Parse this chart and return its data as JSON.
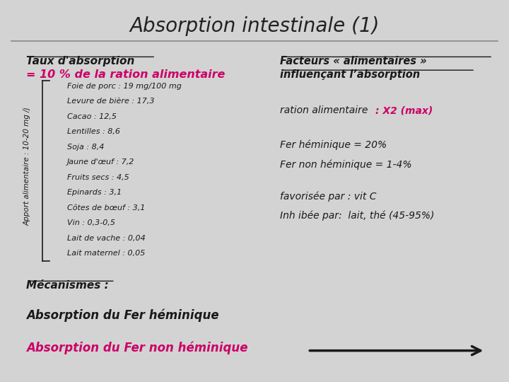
{
  "title": "Absorption intestinale (1)",
  "background_color": "#d3d3d3",
  "title_fontsize": 20,
  "title_color": "#222222",
  "section1_heading": "Taux d'absorption",
  "section1_subheading": "= 10 % de la ration alimentaire",
  "vertical_label": "Apport alimentaire : 10-20 mg /j",
  "food_items": [
    "Foie de porc : 19 mg/100 mg",
    "Levure de bière : 17,3",
    "Cacao : 12,5",
    "Lentilles : 8,6",
    "Soja : 8,4",
    "Jaune d'œuf : 7,2",
    "Fruits secs : 4,5",
    "Epinards : 3,1",
    "Côtes de bœuf : 3,1",
    "Vin : 0,3-0,5",
    "Lait de vache : 0,04",
    "Lait maternel : 0,05"
  ],
  "section2_heading_line1": "Facteurs « alimentaires »",
  "section2_heading_line2": "influençant l’absorption",
  "section2_line1_normal": "ration alimentaire ",
  "section2_line1_highlight": ": X2 (max)",
  "section2_fer1": "Fer héminique = 20%",
  "section2_fer2": "Fer non héminique = 1-4%",
  "section2_fav": "favorisée par : vit C",
  "section2_inh": "Inh ibée par:  lait, thé (45-95%)",
  "bottom_heading": "Mécanismes :",
  "bottom_line1": "Absorption du Fer héminique",
  "bottom_line2": "Absorption du Fer non héminique",
  "magenta_color": "#cc0066",
  "black_color": "#1a1a1a",
  "separator_line_color": "#888888"
}
